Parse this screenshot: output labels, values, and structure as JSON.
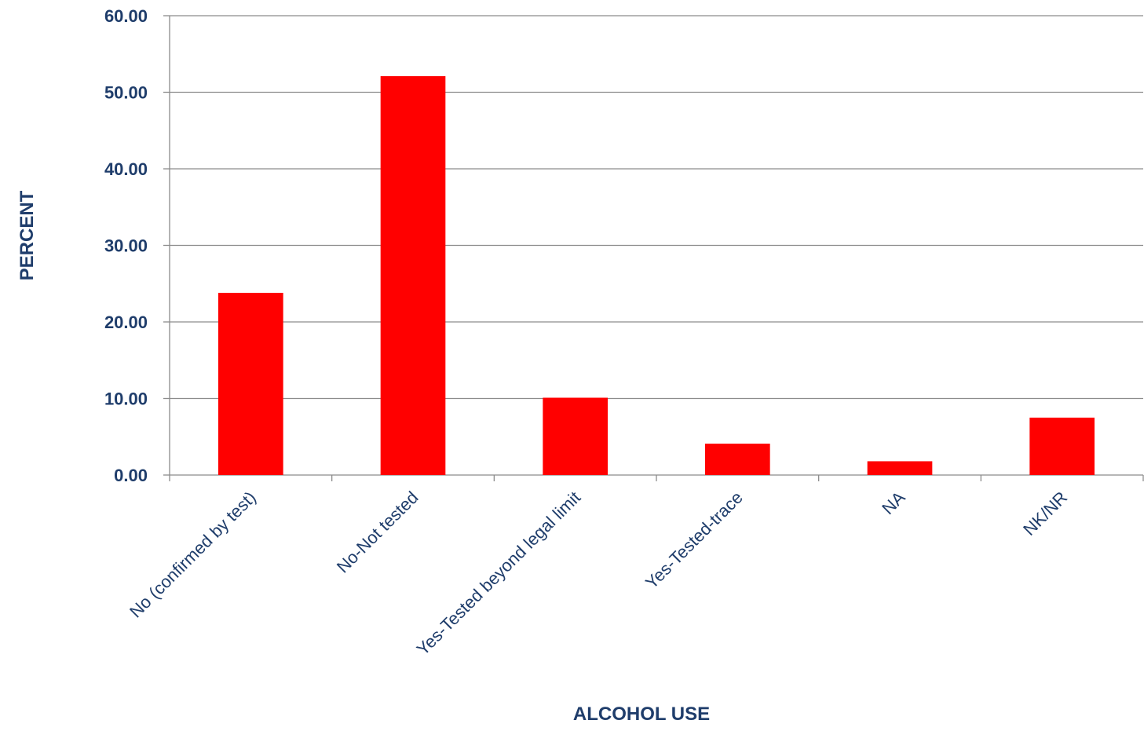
{
  "colors": {
    "bar": "#ff0000",
    "text": "#1f3d6b",
    "grid": "#8c8c8c",
    "axis": "#8c8c8c"
  },
  "chart_data": {
    "type": "bar",
    "categories": [
      "No (confirmed by test)",
      "No-Not tested",
      "Yes-Tested beyond legal limit",
      "Yes-Tested-trace",
      "NA",
      "NK/NR"
    ],
    "values": [
      23.8,
      52.1,
      10.1,
      4.1,
      1.8,
      7.5
    ],
    "yticks": [
      "0.00",
      "10.00",
      "20.00",
      "30.00",
      "40.00",
      "50.00",
      "60.00"
    ],
    "xlabel": "ALCOHOL USE",
    "ylabel": "PERCENT",
    "ylim": [
      0,
      60
    ],
    "grid": true,
    "legend": "none"
  }
}
